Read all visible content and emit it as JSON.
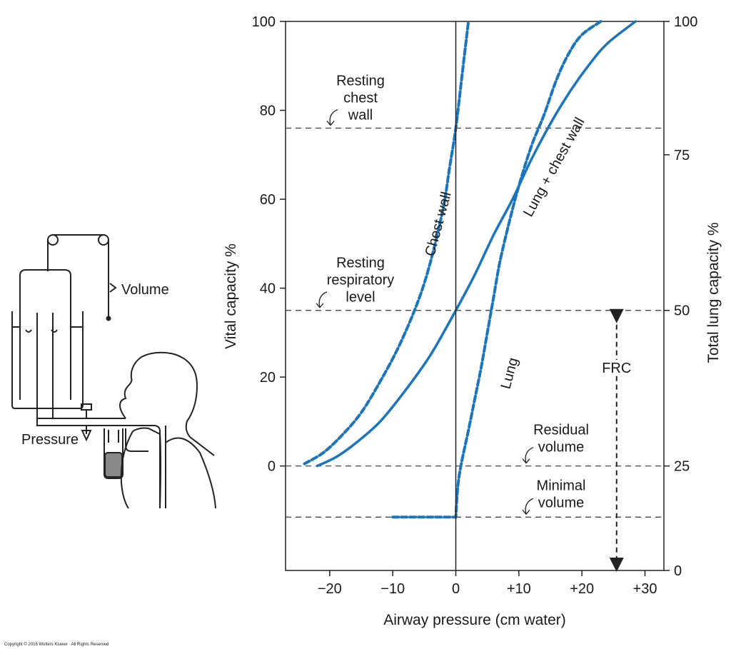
{
  "chart_data": {
    "type": "line",
    "xlabel": "Airway pressure (cm water)",
    "ylabel": "Vital capacity %",
    "y2label": "Total lung capacity %",
    "xlim": [
      -27,
      33
    ],
    "ylim": [
      -23.5,
      100
    ],
    "x_ticks": [
      -20,
      -10,
      0,
      10,
      20,
      30
    ],
    "x_tick_labels": [
      "−20",
      "−10",
      "0",
      "+10",
      "+20",
      "+30"
    ],
    "y_ticks": [
      0,
      20,
      40,
      60,
      80,
      100
    ],
    "y_tick_labels": [
      "0",
      "20",
      "40",
      "60",
      "80",
      "100"
    ],
    "y2_ticks": [
      {
        "label": "0",
        "vc": -23.5
      },
      {
        "label": "25",
        "vc": 0
      },
      {
        "label": "50",
        "vc": 35
      },
      {
        "label": "75",
        "vc": 70
      },
      {
        "label": "100",
        "vc": 100
      }
    ],
    "vertical_line_x": 0,
    "colors": {
      "curve": "#1b75bb",
      "axis": "#222222",
      "guide": "#333333"
    },
    "series": [
      {
        "name": "Lung + chest wall",
        "style": "solid",
        "points": [
          [
            -22,
            0
          ],
          [
            -19,
            2
          ],
          [
            -16,
            5
          ],
          [
            -12,
            10
          ],
          [
            -8,
            17
          ],
          [
            -4,
            25
          ],
          [
            0,
            35
          ],
          [
            3,
            43
          ],
          [
            6,
            52
          ],
          [
            9,
            60
          ],
          [
            12,
            69
          ],
          [
            15,
            77
          ],
          [
            18,
            84
          ],
          [
            21,
            90
          ],
          [
            24,
            95
          ],
          [
            28.5,
            100
          ]
        ]
      },
      {
        "name": "Chest wall",
        "style": "dashed",
        "points": [
          [
            -24,
            0.5
          ],
          [
            -21,
            3
          ],
          [
            -18,
            7
          ],
          [
            -15,
            12
          ],
          [
            -12,
            19
          ],
          [
            -9,
            27
          ],
          [
            -6,
            37
          ],
          [
            -4,
            46
          ],
          [
            -2,
            58
          ],
          [
            -1,
            67
          ],
          [
            0,
            76
          ],
          [
            1,
            88
          ],
          [
            2,
            100
          ]
        ]
      },
      {
        "name": "Lung",
        "style": "dashed",
        "points": [
          [
            -10,
            -11.5
          ],
          [
            0,
            -11.5
          ],
          [
            0.3,
            -5
          ],
          [
            0.8,
            0
          ],
          [
            2,
            8
          ],
          [
            3,
            15
          ],
          [
            4,
            22
          ],
          [
            5,
            30
          ],
          [
            6,
            38
          ],
          [
            7,
            46
          ],
          [
            8.5,
            55
          ],
          [
            10,
            63
          ],
          [
            12,
            72
          ],
          [
            14,
            79
          ],
          [
            16,
            87
          ],
          [
            18,
            93
          ],
          [
            20,
            97
          ],
          [
            23,
            100
          ]
        ]
      }
    ],
    "reference_lines": [
      {
        "vc": 76,
        "text": [
          "Resting",
          "chest",
          "wall"
        ]
      },
      {
        "vc": 35,
        "text": [
          "Resting",
          "respiratory",
          "level"
        ]
      },
      {
        "vc": 0,
        "text": [
          "Residual",
          "volume"
        ]
      },
      {
        "vc": -11.5,
        "text": [
          "Minimal",
          "volume"
        ]
      }
    ],
    "frc": {
      "label": "FRC",
      "x": 25.5,
      "from_vc": 35,
      "to_vc": -23.5
    },
    "curve_labels": {
      "lung_chest_wall": "Lung + chest wall",
      "chest_wall": "Chest wall",
      "lung": "Lung"
    }
  },
  "apparatus": {
    "volume_label": "Volume",
    "pressure_label": "Pressure"
  },
  "copyright": "Copyright © 2016 Wolters Kluwer · All Rights Reserved"
}
